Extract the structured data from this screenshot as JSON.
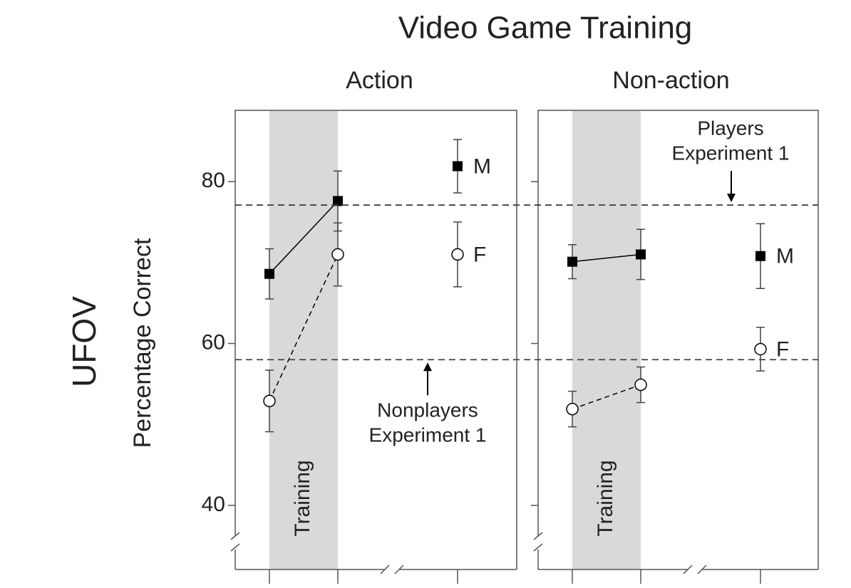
{
  "figure": {
    "title": "Video Game Training",
    "ylabel": "Percentage Correct",
    "group_label": "UFOV",
    "reference_lines": [
      {
        "value": 77.1,
        "label": [
          "Players",
          "Experiment 1"
        ],
        "panel": 1
      },
      {
        "value": 58.0,
        "label": [
          "Nonplayers",
          "Experiment 1"
        ],
        "panel": 0
      }
    ]
  },
  "chart_data": [
    {
      "type": "line",
      "subtitle": "Action",
      "categories": [
        null,
        null,
        null
      ],
      "band_label": "Training",
      "band_color": "#d9d9d9",
      "x_break_after": 1,
      "ylim": [
        35.6,
        88.8
      ],
      "yticks": [
        40,
        60,
        80
      ],
      "ytick_labels": true,
      "series": [
        {
          "name": "M",
          "color": "#000000",
          "marker": "square",
          "linestyle": "solid",
          "values": [
            68.6,
            77.6,
            81.9
          ],
          "errors": [
            3.1,
            3.7,
            3.3
          ]
        },
        {
          "name": "F",
          "color": "#000000",
          "marker": "open-circle",
          "linestyle": "dashed",
          "values": [
            52.9,
            71.0,
            71.0
          ],
          "errors": [
            3.8,
            3.9,
            4.0
          ]
        }
      ]
    },
    {
      "type": "line",
      "subtitle": "Non-action",
      "categories": [
        null,
        null,
        null
      ],
      "band_label": "Training",
      "band_color": "#d9d9d9",
      "x_break_after": 1,
      "ylim": [
        35.6,
        88.8
      ],
      "yticks": [
        40,
        60,
        80
      ],
      "ytick_labels": false,
      "series": [
        {
          "name": "M",
          "color": "#000000",
          "marker": "square",
          "linestyle": "solid",
          "values": [
            70.1,
            71.0,
            70.8
          ],
          "errors": [
            2.1,
            3.1,
            4.0
          ]
        },
        {
          "name": "F",
          "color": "#000000",
          "marker": "open-circle",
          "linestyle": "dashed",
          "values": [
            51.9,
            54.9,
            59.3
          ],
          "errors": [
            2.2,
            2.2,
            2.7
          ]
        }
      ]
    }
  ]
}
